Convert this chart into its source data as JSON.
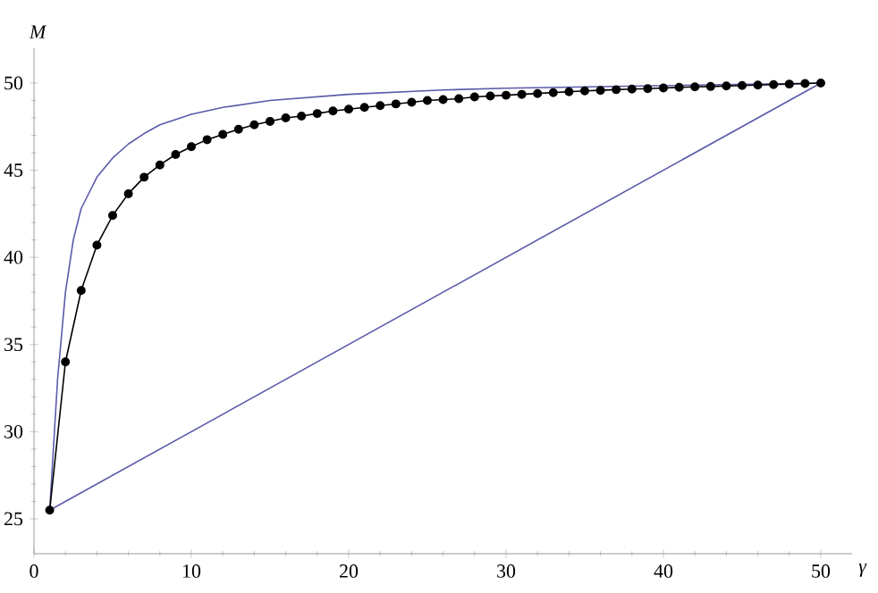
{
  "chart_data": {
    "type": "line",
    "xlabel": "γ",
    "ylabel": "M",
    "xlim": [
      0,
      52
    ],
    "ylim": [
      23,
      52
    ],
    "xticks": [
      0,
      10,
      20,
      30,
      40,
      50
    ],
    "yticks": [
      25,
      30,
      35,
      40,
      45,
      50
    ],
    "series": [
      {
        "color": "#5a5aaa",
        "marker": "none",
        "x": [
          1,
          1.5,
          2,
          2.5,
          3,
          4,
          5,
          6,
          7,
          8,
          10,
          12,
          15,
          20,
          26,
          30,
          40,
          50
        ],
        "values": [
          25.5,
          33,
          38,
          41,
          42.8,
          44.6,
          45.7,
          46.5,
          47.1,
          47.6,
          48.2,
          48.6,
          49.0,
          49.35,
          49.6,
          49.7,
          49.85,
          50
        ]
      },
      {
        "color": "#000000",
        "marker": "circle",
        "x": [
          1,
          2,
          3,
          4,
          5,
          6,
          7,
          8,
          9,
          10,
          11,
          12,
          13,
          14,
          15,
          16,
          17,
          18,
          19,
          20,
          21,
          22,
          23,
          24,
          25,
          26,
          27,
          28,
          29,
          30,
          31,
          32,
          33,
          34,
          35,
          36,
          37,
          38,
          39,
          40,
          41,
          42,
          43,
          44,
          45,
          46,
          47,
          48,
          49,
          50
        ],
        "values": [
          25.5,
          34,
          38.1,
          40.7,
          42.4,
          43.65,
          44.6,
          45.3,
          45.9,
          46.35,
          46.75,
          47.05,
          47.35,
          47.6,
          47.8,
          48,
          48.1,
          48.25,
          48.4,
          48.5,
          48.6,
          48.7,
          48.8,
          48.9,
          49,
          49.05,
          49.1,
          49.2,
          49.25,
          49.3,
          49.35,
          49.4,
          49.45,
          49.5,
          49.55,
          49.58,
          49.62,
          49.65,
          49.68,
          49.72,
          49.75,
          49.78,
          49.8,
          49.83,
          49.86,
          49.88,
          49.91,
          49.94,
          49.97,
          50
        ]
      },
      {
        "color": "#5a5aaa",
        "marker": "none",
        "x": [
          1,
          50
        ],
        "values": [
          25.5,
          50
        ]
      }
    ]
  }
}
